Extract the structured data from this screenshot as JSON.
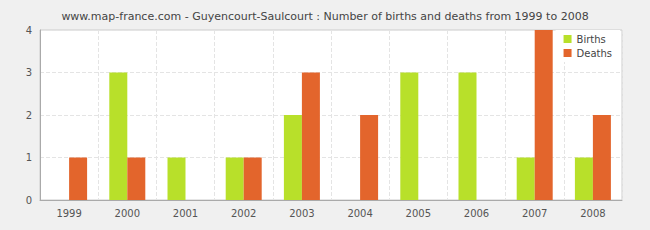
{
  "chart_data": {
    "type": "bar",
    "title": "www.map-france.com - Guyencourt-Saulcourt : Number of births and deaths from 1999 to 2008",
    "categories": [
      "1999",
      "2000",
      "2001",
      "2002",
      "2003",
      "2004",
      "2005",
      "2006",
      "2007",
      "2008"
    ],
    "series": [
      {
        "name": "Births",
        "color": "#b8e02a",
        "values": [
          0,
          3,
          1,
          1,
          2,
          0,
          3,
          3,
          1,
          1
        ]
      },
      {
        "name": "Deaths",
        "color": "#e3652c",
        "values": [
          1,
          1,
          0,
          1,
          3,
          2,
          0,
          0,
          4,
          2
        ]
      }
    ],
    "ylim": [
      0,
      4
    ],
    "yticks": [
      0,
      1,
      2,
      3,
      4
    ],
    "grid": true,
    "legend": "top-right"
  }
}
